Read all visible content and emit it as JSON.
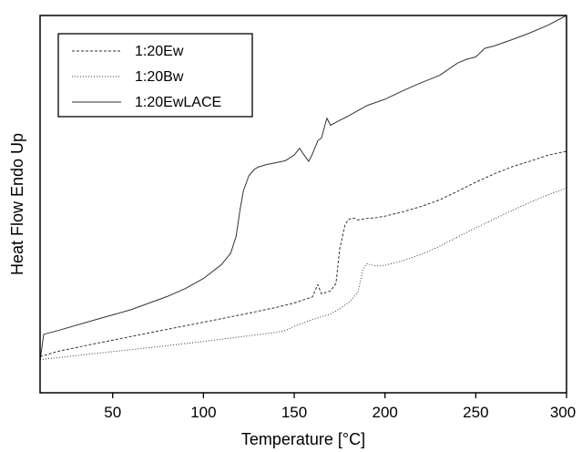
{
  "chart_data": {
    "type": "line",
    "xlabel": "Temperature [°C]",
    "ylabel": "Heat Flow Endo Up",
    "xlim": [
      10,
      300
    ],
    "ylim": [
      0,
      100
    ],
    "x_ticks": [
      50,
      100,
      150,
      200,
      250,
      300
    ],
    "x_tick_labels": [
      "50",
      "100",
      "150",
      "200",
      "250",
      "300"
    ],
    "y_ticks_labeled": false,
    "grid": false,
    "legend": {
      "position": "top-left"
    },
    "colors": {
      "axis": "#000000",
      "series": "#333333"
    },
    "series": [
      {
        "name": "1:20Ew",
        "style": "dashed",
        "x": [
          10,
          20,
          40,
          60,
          80,
          100,
          120,
          140,
          150,
          160,
          163,
          165,
          170,
          173,
          175,
          178,
          180,
          183,
          185,
          190,
          195,
          200,
          210,
          220,
          230,
          240,
          250,
          260,
          270,
          280,
          290,
          300
        ],
        "y": [
          9.6,
          11.0,
          13.0,
          14.9,
          16.8,
          18.7,
          20.6,
          22.6,
          23.8,
          25.4,
          28.7,
          26.2,
          27.0,
          29.0,
          38.0,
          44.5,
          46.0,
          46.3,
          45.8,
          46.2,
          46.4,
          46.8,
          48.0,
          49.4,
          51.1,
          53.4,
          55.8,
          58.0,
          59.9,
          61.4,
          63.0,
          64.0
        ]
      },
      {
        "name": "1:20Bw",
        "style": "dotted",
        "x": [
          10,
          20,
          40,
          60,
          80,
          100,
          120,
          140,
          145,
          150,
          160,
          170,
          175,
          180,
          185,
          188,
          190,
          195,
          200,
          210,
          220,
          230,
          240,
          250,
          260,
          270,
          280,
          290,
          300
        ],
        "y": [
          8.8,
          9.3,
          10.4,
          11.4,
          12.5,
          13.6,
          14.8,
          16.0,
          16.5,
          17.6,
          19.4,
          20.9,
          22.3,
          23.9,
          26.5,
          33.0,
          34.2,
          33.6,
          33.8,
          35.0,
          36.7,
          38.8,
          41.3,
          43.7,
          46.0,
          48.3,
          50.5,
          52.5,
          54.3
        ]
      },
      {
        "name": "1:20EwLACE",
        "style": "solid",
        "x": [
          10,
          12,
          20,
          40,
          60,
          80,
          90,
          100,
          110,
          115,
          118,
          120,
          122,
          125,
          128,
          130,
          135,
          140,
          145,
          150,
          153,
          155,
          158,
          160,
          163,
          165,
          168,
          170,
          175,
          180,
          190,
          200,
          210,
          220,
          230,
          240,
          245,
          250,
          255,
          260,
          270,
          280,
          290,
          300
        ],
        "y": [
          8.5,
          15.5,
          16.5,
          19.3,
          22.0,
          25.5,
          27.6,
          30.3,
          34.0,
          37.0,
          41.5,
          48.0,
          53.5,
          57.5,
          59.2,
          59.8,
          60.5,
          61.0,
          61.5,
          63.0,
          64.8,
          63.3,
          61.3,
          63.3,
          66.8,
          67.5,
          72.8,
          70.9,
          72.2,
          73.4,
          76.1,
          77.8,
          80.1,
          82.2,
          84.1,
          87.4,
          88.4,
          89.0,
          91.3,
          91.9,
          93.6,
          95.4,
          97.5,
          100.0
        ]
      }
    ]
  }
}
